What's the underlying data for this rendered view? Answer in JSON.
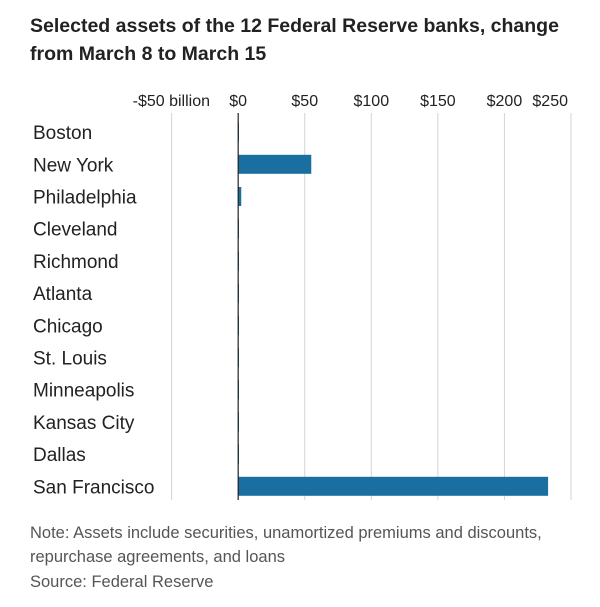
{
  "chart_data": {
    "type": "bar",
    "orientation": "horizontal",
    "title": "Selected assets of the 12 Federal Reserve banks, change from March 8 to March 15",
    "x_ticks": [
      {
        "value": -50,
        "label": "-$50 billion"
      },
      {
        "value": 0,
        "label": "$0"
      },
      {
        "value": 50,
        "label": "$50"
      },
      {
        "value": 100,
        "label": "$100"
      },
      {
        "value": 150,
        "label": "$150"
      },
      {
        "value": 200,
        "label": "$200"
      },
      {
        "value": 250,
        "label": "$250"
      }
    ],
    "xlim": [
      -76,
      250
    ],
    "grid": true,
    "categories": [
      "Boston",
      "New York",
      "Philadelphia",
      "Cleveland",
      "Richmond",
      "Atlanta",
      "Chicago",
      "St. Louis",
      "Minneapolis",
      "Kansas City",
      "Dallas",
      "San Francisco"
    ],
    "values": [
      0.1,
      54.9,
      2.3,
      0.3,
      0.1,
      0.4,
      0.1,
      0.5,
      0.1,
      0.4,
      0.1,
      232.8
    ],
    "bar_color": "#1a6fa0",
    "note": "Note: Assets include securities, unamortized premiums and discounts, repurchase agreements, and loans",
    "source": "Source: Federal Reserve"
  }
}
